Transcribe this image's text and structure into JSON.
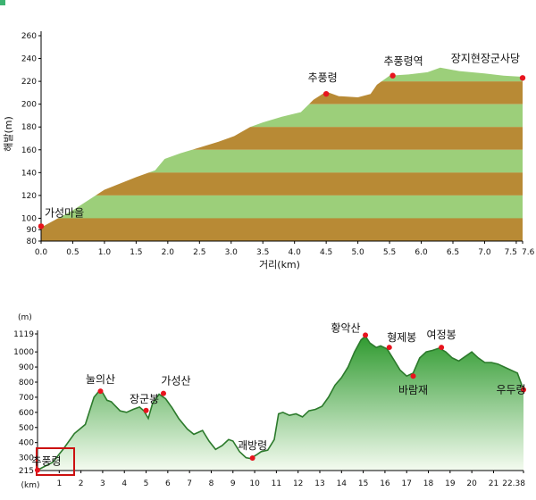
{
  "colors": {
    "light_band": "#9ccf7a",
    "dark_band": "#b88a35",
    "point": "#e8141e",
    "profile_stroke": "#2c7a2c",
    "profile_fill_top": "#2f9a2f",
    "profile_fill_bottom": "#f4fbf0",
    "highlight_box": "#cc1111"
  },
  "chart_data": [
    {
      "type": "area",
      "title": "",
      "xlabel": "거리(km)",
      "ylabel": "해발(m)",
      "xlim": [
        0,
        7.6
      ],
      "ylim": [
        80,
        260
      ],
      "x_ticks": [
        "0.0",
        "0.5",
        "1.0",
        "1.5",
        "2.0",
        "2.5",
        "3.0",
        "3.5",
        "4.0",
        "4.5",
        "5.0",
        "5.5",
        "6.0",
        "6.5",
        "7.0",
        "7.5",
        "7.6"
      ],
      "y_ticks": [
        "80",
        "90",
        "100",
        "120",
        "140",
        "160",
        "180",
        "200",
        "220",
        "240",
        "260"
      ],
      "series": [
        {
          "x": [
            0,
            0.5,
            1.0,
            1.5,
            1.8,
            1.95,
            2.2,
            2.5,
            2.8,
            3.05,
            3.3,
            3.5,
            3.8,
            4.1,
            4.3,
            4.5,
            4.7,
            5.0,
            5.2,
            5.3,
            5.5,
            5.8,
            6.1,
            6.3,
            6.6,
            7.0,
            7.3,
            7.6
          ],
          "y": [
            92,
            107,
            125,
            136,
            142,
            152,
            157,
            162,
            167,
            172,
            180,
            184,
            189,
            193,
            204,
            211,
            207,
            206,
            209,
            217,
            225,
            226,
            228,
            232,
            229,
            227,
            225,
            224
          ]
        }
      ],
      "points": [
        {
          "label": "가성마을",
          "x": 0,
          "y": 93
        },
        {
          "label": "추풍령",
          "x": 4.5,
          "y": 209
        },
        {
          "label": "추풍령역",
          "x": 5.55,
          "y": 225
        },
        {
          "label": "장지현장군사당",
          "x": 7.6,
          "y": 223
        }
      ]
    },
    {
      "type": "area",
      "title": "",
      "xlabel": "(km)",
      "ylabel": "(m)",
      "xlim": [
        0,
        22.38
      ],
      "ylim": [
        215,
        1119
      ],
      "x_ticks": [
        "1",
        "2",
        "3",
        "4",
        "5",
        "6",
        "7",
        "8",
        "9",
        "10",
        "11",
        "12",
        "13",
        "14",
        "15",
        "16",
        "17",
        "18",
        "19",
        "20",
        "21",
        "22.38"
      ],
      "y_ticks": [
        "215",
        "300",
        "400",
        "500",
        "600",
        "700",
        "800",
        "900",
        "1000",
        "1119"
      ],
      "series": [
        {
          "x": [
            0,
            0.7,
            1.2,
            1.7,
            2.2,
            2.6,
            2.8,
            3.0,
            3.2,
            3.4,
            3.8,
            4.1,
            4.4,
            4.7,
            4.9,
            5.1,
            5.3,
            5.6,
            5.9,
            6.2,
            6.5,
            6.9,
            7.2,
            7.6,
            7.9,
            8.2,
            8.5,
            8.8,
            9.0,
            9.3,
            9.6,
            9.8,
            10.1,
            10.3,
            10.6,
            10.9,
            11.1,
            11.3,
            11.6,
            11.9,
            12.2,
            12.5,
            12.8,
            13.1,
            13.4,
            13.7,
            14.0,
            14.3,
            14.6,
            14.9,
            15.1,
            15.3,
            15.6,
            15.8,
            16.1,
            16.4,
            16.7,
            17.0,
            17.3,
            17.6,
            17.9,
            18.2,
            18.5,
            18.8,
            19.1,
            19.4,
            19.7,
            20.0,
            20.3,
            20.6,
            20.9,
            21.2,
            21.5,
            21.8,
            22.1,
            22.38
          ],
          "y": [
            218,
            270,
            360,
            460,
            520,
            700,
            735,
            730,
            680,
            670,
            610,
            600,
            620,
            635,
            610,
            560,
            660,
            720,
            690,
            630,
            560,
            490,
            455,
            480,
            410,
            355,
            380,
            420,
            410,
            340,
            300,
            295,
            320,
            340,
            350,
            420,
            590,
            600,
            580,
            590,
            570,
            610,
            620,
            640,
            700,
            780,
            830,
            900,
            1000,
            1080,
            1105,
            1060,
            1030,
            1040,
            1020,
            950,
            880,
            840,
            860,
            960,
            1000,
            1010,
            1025,
            1000,
            960,
            940,
            970,
            1000,
            960,
            930,
            930,
            920,
            900,
            880,
            860,
            750
          ]
        }
      ],
      "points": [
        {
          "label": "추풍령",
          "x": 0,
          "y": 218
        },
        {
          "label": "눌의산",
          "x": 2.9,
          "y": 740
        },
        {
          "label": "장군봉",
          "x": 5.0,
          "y": 612
        },
        {
          "label": "가성산",
          "x": 5.8,
          "y": 725
        },
        {
          "label": "괘방령",
          "x": 9.9,
          "y": 298
        },
        {
          "label": "황악산",
          "x": 15.1,
          "y": 1111
        },
        {
          "label": "형제봉",
          "x": 16.2,
          "y": 1030
        },
        {
          "label": "바람재",
          "x": 17.3,
          "y": 840
        },
        {
          "label": "여정봉",
          "x": 18.6,
          "y": 1030
        },
        {
          "label": "우두령",
          "x": 22.38,
          "y": 750
        }
      ]
    }
  ]
}
